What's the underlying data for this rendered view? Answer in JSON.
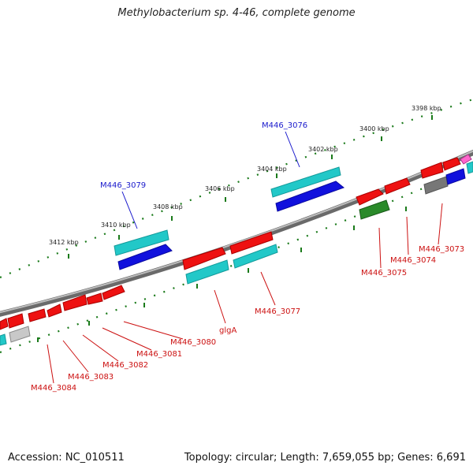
{
  "title": "Methylobacterium sp. 4-46, complete genome",
  "footer": {
    "accession": "Accession: NC_010511",
    "summary": "Topology: circular; Length: 7,659,055 bp; Genes: 6,691"
  },
  "colors": {
    "backbone": "#8a8a8a",
    "tick": "#1a7a1a",
    "top_label": "#1a1acc",
    "bottom_label": "#cc1111",
    "red": "#ee1111",
    "cyan": "#22c8c8",
    "blue": "#1111dd",
    "green": "#2a8a2a",
    "gray": "#777777"
  },
  "tick_labels": [
    "3398 kbp",
    "3400 kbp",
    "3402 kbp",
    "3404 kbp",
    "3406 kbp",
    "3408 kbp",
    "3410 kbp",
    "3412 kbp"
  ],
  "top_gene_labels": [
    "M446_3076",
    "M446_3079"
  ],
  "bottom_gene_labels": [
    "M446_3073",
    "M446_3074",
    "M446_3075",
    "M446_3077",
    "glgA",
    "M446_3080",
    "M446_3081",
    "M446_3082",
    "M446_3083",
    "M446_3084"
  ]
}
